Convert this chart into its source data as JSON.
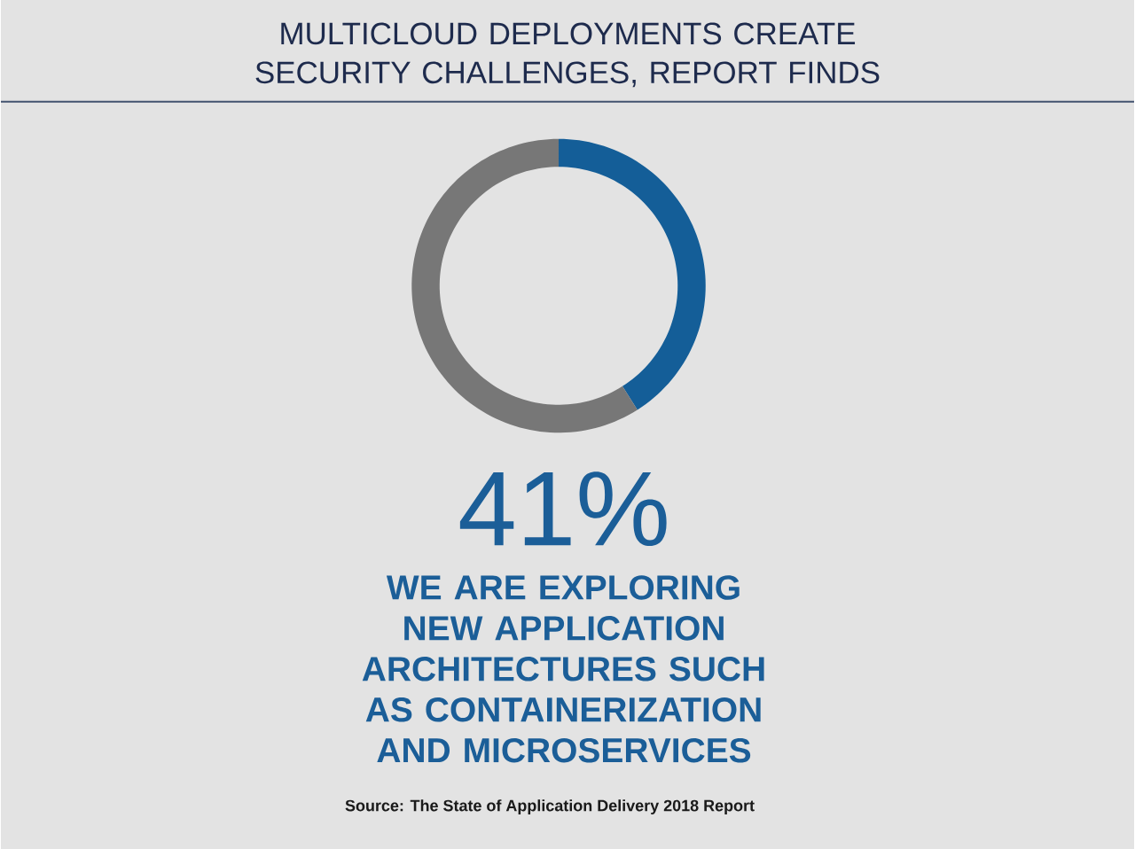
{
  "chart_data": {
    "type": "donut",
    "title": "MULTICLOUD DEPLOYMENTS CREATE SECURITY CHALLENGES, REPORT FINDS",
    "categories": [
      null,
      null
    ],
    "values": [
      41,
      59
    ],
    "colors": [
      "#145e98",
      "#777777"
    ],
    "annotations": [
      "41%",
      "WE ARE EXPLORING NEW APPLICATION ARCHITECTURES SUCH AS CONTAINERIZATION AND MICROSERVICES",
      "Source: The State of Application Delivery 2018 Report"
    ]
  }
}
